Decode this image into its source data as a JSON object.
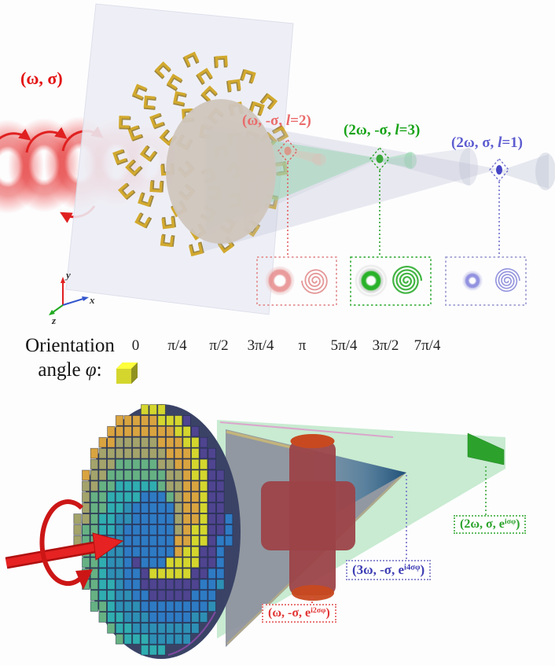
{
  "colors": {
    "incident_red": "#e41313",
    "fundamental_pink": "#ea6b6b",
    "green": "#17a317",
    "blue_violet": "#5d5dd0",
    "gold": "#d2a92e",
    "gold_dark": "#8a6d14",
    "plate_gray": "#edeef5",
    "beam_gray": "#b9bdd0",
    "beam_green": "#8fd4a8",
    "beam_tan": "#cfc5bd",
    "cone_shadow_gray": "#8e949e",
    "cone_blue": "#1f5078",
    "cross_maroon": "#9c4347",
    "cross_cap_orange": "#c8491f",
    "screen_green": "#2ca22c",
    "arrow_red": "#e62222",
    "output_red": "#e23333",
    "output_blue": "#3c3cb4",
    "output_green": "#2ba32b"
  },
  "top_panel": {
    "incident_label": "(ω, σ)",
    "fundamental": {
      "pre": "(ω, -σ, ",
      "l": "l",
      "post": "=2)"
    },
    "second_harmonic_cross": {
      "pre": "(2ω, -σ, ",
      "l": "l",
      "post": "=3)"
    },
    "second_harmonic_co": {
      "pre": "(2ω, σ, ",
      "l": "l",
      "post": "=1)"
    },
    "axes": {
      "x": "x",
      "y": "y",
      "z": "z"
    }
  },
  "legend": {
    "title_line1": "Orientation",
    "title_line2_pre": "angle ",
    "title_line2_phi": "φ",
    "title_line2_colon": ":",
    "entries": [
      {
        "label": "0",
        "color": "#4f4490"
      },
      {
        "label": "π/4",
        "color": "#2e7bc4"
      },
      {
        "label": "π/2",
        "color": "#2e8fb4"
      },
      {
        "label": "3π/4",
        "color": "#30adb0"
      },
      {
        "label": "π",
        "color": "#66b183"
      },
      {
        "label": "5π/4",
        "color": "#a3a36b"
      },
      {
        "label": "3π/2",
        "color": "#d9a440"
      },
      {
        "label": "7π/4",
        "color": "#d4d62e"
      }
    ]
  },
  "bottom_panel": {
    "fundamental": {
      "pre": "(ω, -σ, e",
      "sup": "i2σφ",
      "post": ")"
    },
    "third_harmonic": {
      "pre": "(3ω, -σ, e",
      "sup": "i4σφ",
      "post": ")"
    },
    "second_harmonic": {
      "pre": "(2ω, σ, e",
      "sup": "iσφ",
      "post": ")"
    }
  }
}
